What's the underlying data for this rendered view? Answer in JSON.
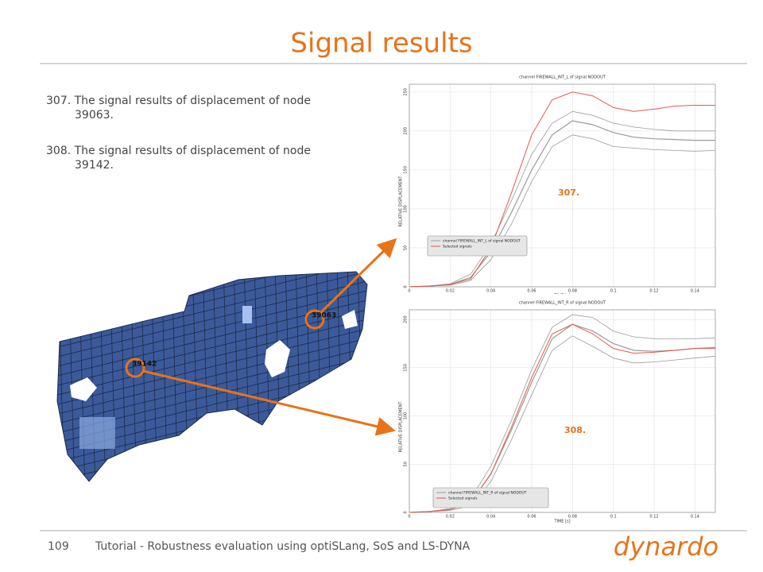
{
  "header": {
    "title": "Signal results"
  },
  "items": [
    "307. The signal results of displacement of node 39063.",
    "308. The signal results of displacement of node 39142."
  ],
  "mesh": {
    "labels": [
      "39063",
      "39142"
    ]
  },
  "charts": [
    {
      "type": "line",
      "title": "channel FIREWALL_INT_L of signal NODOUT",
      "x_label": "TIME [s]",
      "y_label": "RELATIVE DISPLACEMENT",
      "callout": "307.",
      "x": [
        0,
        0.01,
        0.02,
        0.03,
        0.04,
        0.05,
        0.06,
        0.07,
        0.08,
        0.09,
        0.1,
        0.11,
        0.12,
        0.13,
        0.14,
        0.15
      ],
      "xlim": [
        0,
        0.15
      ],
      "xticks": [
        0,
        0.02,
        0.04,
        0.06,
        0.08,
        0.1,
        0.12,
        0.14
      ],
      "ylim": [
        0,
        260
      ],
      "yticks": [
        0,
        50,
        100,
        150,
        200,
        250
      ],
      "grid": true,
      "series": [
        {
          "name": "channel FIREWALL_INT_L of signal NODOUT",
          "color": "#9a9a9a",
          "values": [
            0,
            1,
            3,
            12,
            45,
            95,
            150,
            195,
            213,
            208,
            198,
            192,
            190,
            189,
            188,
            188
          ],
          "values_low": [
            0,
            1,
            2,
            8,
            35,
            80,
            135,
            180,
            195,
            190,
            180,
            178,
            176,
            175,
            174,
            175
          ],
          "values_high": [
            0,
            1,
            4,
            16,
            55,
            110,
            170,
            210,
            225,
            220,
            210,
            205,
            202,
            200,
            200,
            200
          ]
        },
        {
          "name": "Selected signals",
          "color": "#e05a4e",
          "values": [
            0,
            1,
            3,
            10,
            50,
            120,
            195,
            240,
            250,
            245,
            230,
            225,
            228,
            232,
            233,
            233
          ]
        }
      ]
    },
    {
      "type": "line",
      "title": "channel FIREWALL_INT_R of signal NODOUT",
      "x_label": "TIME [s]",
      "y_label": "RELATIVE DISPLACEMENT",
      "callout": "308.",
      "x": [
        0,
        0.01,
        0.02,
        0.03,
        0.04,
        0.05,
        0.06,
        0.07,
        0.08,
        0.09,
        0.1,
        0.11,
        0.12,
        0.13,
        0.14,
        0.15
      ],
      "xlim": [
        0,
        0.15
      ],
      "xticks": [
        0,
        0.02,
        0.04,
        0.06,
        0.08,
        0.1,
        0.12,
        0.14
      ],
      "ylim": [
        0,
        210
      ],
      "yticks": [
        0,
        50,
        100,
        150,
        200
      ],
      "grid": true,
      "series": [
        {
          "name": "channel FIREWALL_INT_R of signal NODOUT",
          "color": "#9a9a9a",
          "values": [
            0,
            1,
            3,
            10,
            40,
            85,
            135,
            180,
            195,
            188,
            175,
            168,
            167,
            168,
            170,
            171
          ],
          "values_low": [
            0,
            1,
            2,
            7,
            32,
            75,
            122,
            168,
            183,
            172,
            160,
            155,
            156,
            158,
            160,
            162
          ],
          "values_high": [
            0,
            1,
            4,
            14,
            48,
            95,
            148,
            192,
            205,
            202,
            188,
            182,
            180,
            180,
            180,
            181
          ]
        },
        {
          "name": "Selected signals",
          "color": "#e05a4e",
          "values": [
            0,
            1,
            3,
            10,
            40,
            88,
            140,
            185,
            195,
            185,
            170,
            165,
            166,
            168,
            170,
            170
          ]
        }
      ]
    }
  ],
  "footer": {
    "page": "109",
    "text": "Tutorial - Robustness evaluation using optiSLang, SoS and LS-DYNA",
    "logo": "dynardo"
  }
}
